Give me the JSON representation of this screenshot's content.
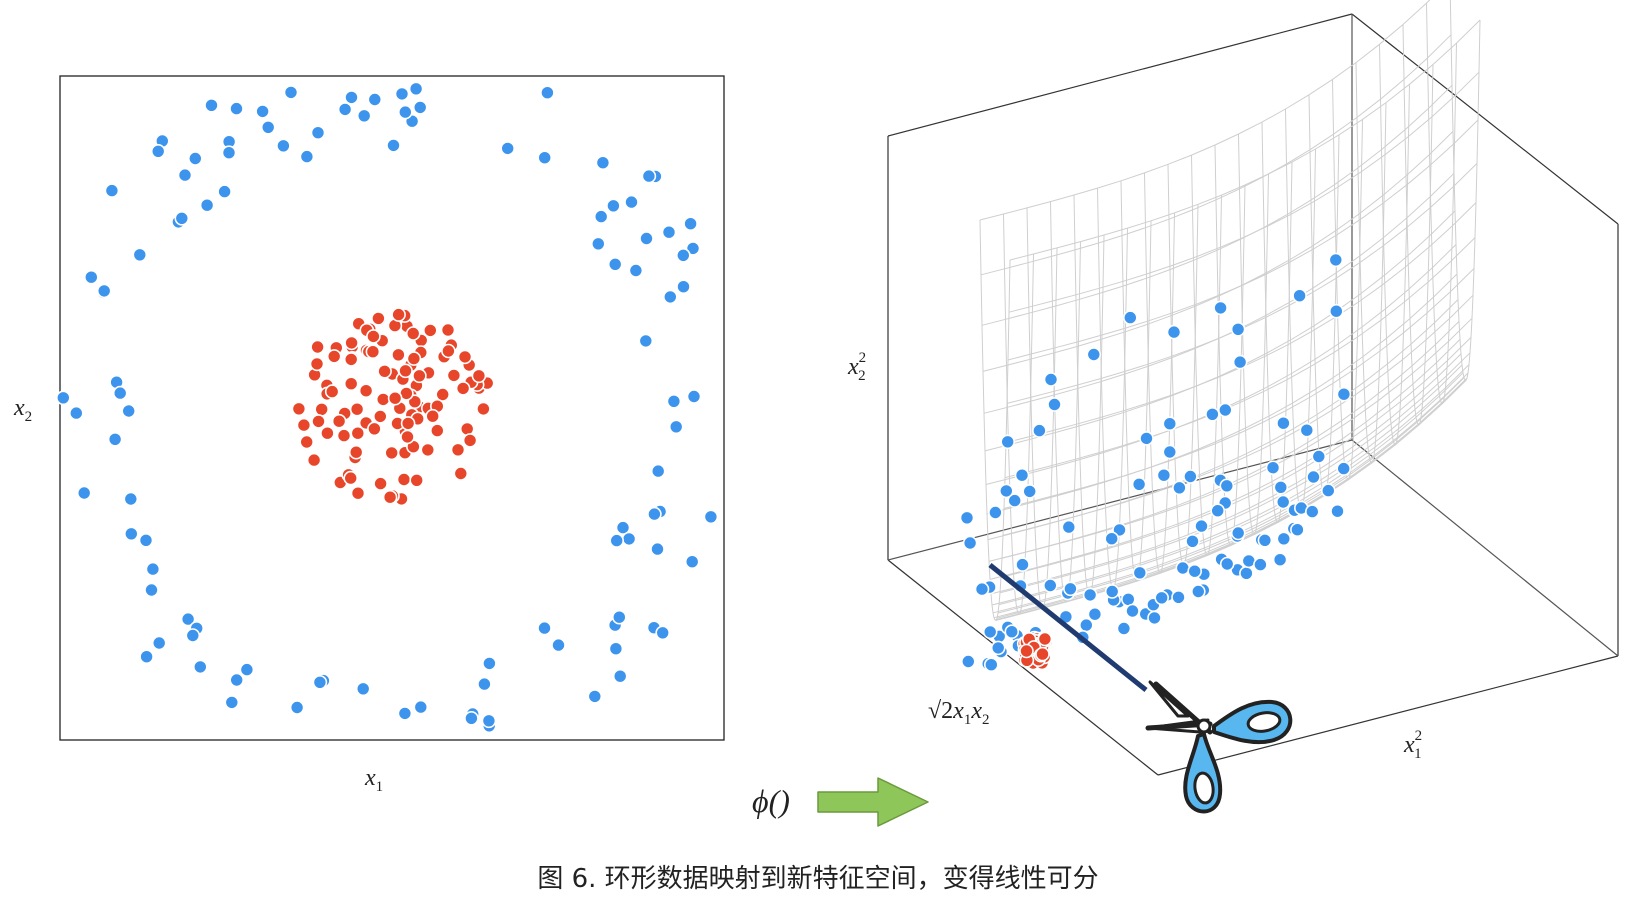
{
  "left_plot": {
    "xlabel": "x",
    "xlabel_sub": "1",
    "ylabel": "x",
    "ylabel_sub": "2"
  },
  "right_plot": {
    "vertical_label": "x",
    "vertical_label_sup": "2",
    "vertical_label_sub": "2",
    "depth_label_root": "√2",
    "depth_label_rest": "x",
    "depth_label_sub1": "1",
    "depth_label_mid": "x",
    "depth_label_sub2": "2",
    "horizontal_label": "x",
    "horizontal_label_sup": "2",
    "horizontal_label_sub": "1"
  },
  "mapping": {
    "label": "ϕ()"
  },
  "caption": "图 6. 环形数据映射到新特征空间，变得线性可分",
  "colors": {
    "inner_class": "#e8462a",
    "outer_class": "#3d94ec",
    "arrow_fill": "#8fc65a",
    "arrow_stroke": "#6a9a3c",
    "cut_line": "#1f3b70",
    "scissors_handle": "#58b7ee",
    "mesh": "#cfcfcf",
    "frame": "#222222"
  },
  "icons": {
    "scissors": "scissors-icon",
    "arrow": "right-arrow-icon"
  }
}
